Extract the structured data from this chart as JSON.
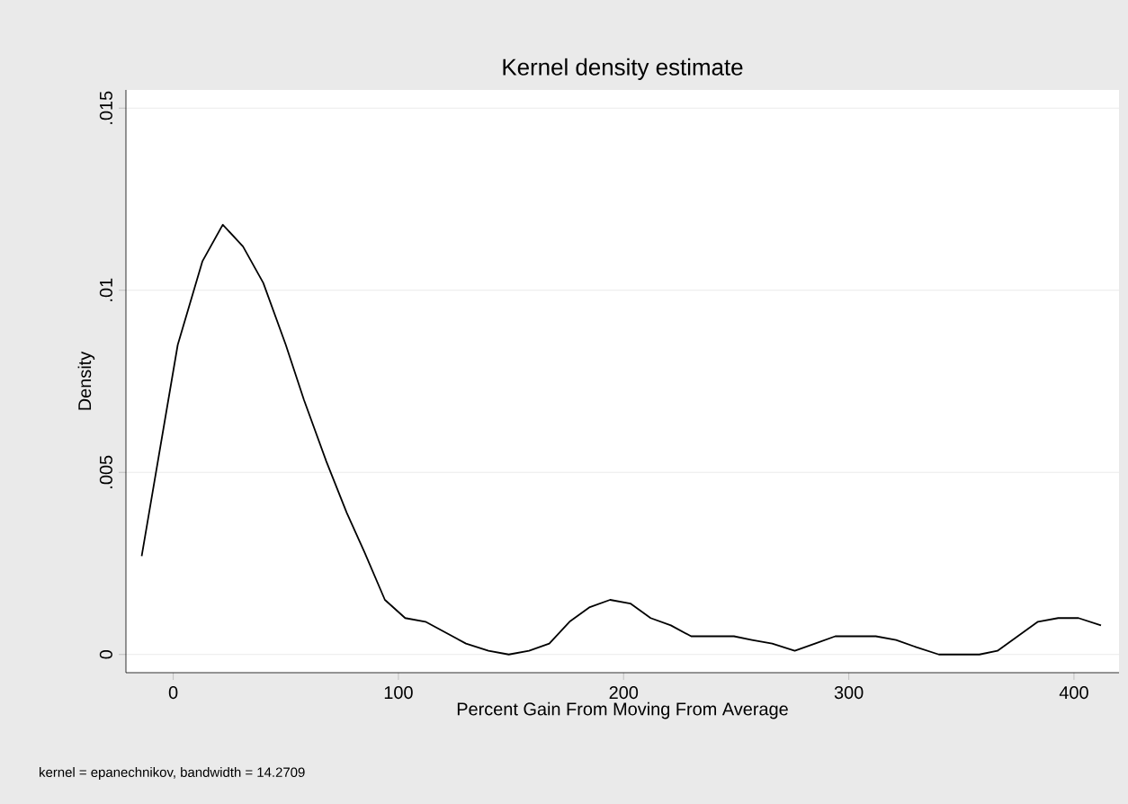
{
  "chart_data": {
    "type": "line",
    "title": "Kernel density estimate",
    "xlabel": "Percent Gain From Moving From Average",
    "ylabel": "Density",
    "annotations": [
      "kernel = epanechnikov, bandwidth = 14.2709"
    ],
    "x": [
      -14,
      2,
      13,
      22,
      31,
      40,
      50,
      58,
      68,
      77,
      85,
      94,
      103,
      112,
      121,
      130,
      140,
      149,
      158,
      167,
      176,
      185,
      194,
      203,
      212,
      221,
      230,
      240,
      249,
      257,
      266,
      276,
      285,
      294,
      302,
      312,
      321,
      330,
      340,
      349,
      358,
      366,
      375,
      384,
      393,
      402,
      412
    ],
    "series": [
      {
        "color": "#000000",
        "values": [
          0.0027,
          0.0085,
          0.0108,
          0.0118,
          0.0112,
          0.0102,
          0.0085,
          0.007,
          0.0053,
          0.0039,
          0.0028,
          0.0015,
          0.001,
          0.0009,
          0.0006,
          0.0003,
          0.0001,
          0.0,
          0.0001,
          0.0003,
          0.0009,
          0.0013,
          0.0015,
          0.0014,
          0.001,
          0.0008,
          0.0005,
          0.0005,
          0.0005,
          0.0004,
          0.0003,
          0.0001,
          0.0003,
          0.0005,
          0.0005,
          0.0005,
          0.0004,
          0.0002,
          0.0,
          0.0,
          0.0,
          0.0001,
          0.0005,
          0.0009,
          0.001,
          0.001,
          0.0008
        ]
      }
    ],
    "xlim": [
      -21,
      420
    ],
    "ylim": [
      -0.0005,
      0.0155
    ],
    "xticks": [
      0,
      100,
      200,
      300,
      400
    ],
    "yticks": [
      {
        "value": 0,
        "label": "0"
      },
      {
        "value": 0.005,
        "label": ".005"
      },
      {
        "value": 0.01,
        "label": ".01"
      },
      {
        "value": 0.015,
        "label": ".015"
      }
    ],
    "grid": "y",
    "marker": "none",
    "line_style": "solid"
  }
}
